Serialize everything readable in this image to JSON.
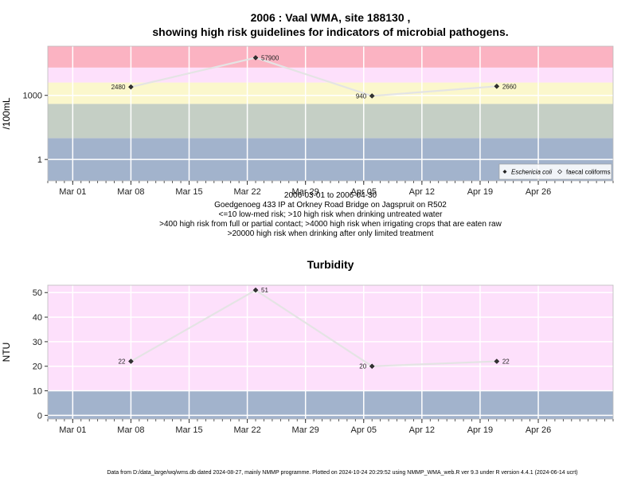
{
  "top": {
    "title_line1": "2006 : Vaal WMA, site 188130 ,",
    "title_line2": "showing high risk guidelines for indicators of microbial pathogens.",
    "caption_lines": [
      "2006-03-01 to 2006-04-30",
      "Goedgenoeg 433 IP at Orkney Road Bridge on Jagspruit on R502",
      "<=10 low-med risk; >10 high risk when drinking untreated water",
      ">400 high risk from full or partial contact; >4000 high risk when irrigating crops that are eaten raw",
      ">20000 high risk when drinking after only limited treatment"
    ]
  },
  "chart_data": [
    {
      "type": "line",
      "ylabel": "/100mL",
      "yscale": "log",
      "ylim": [
        0.1,
        200000
      ],
      "xlim": [
        "2006-02-26",
        "2006-05-05"
      ],
      "x_ticks": [
        "Mar 01",
        "Mar 08",
        "Mar 15",
        "Mar 22",
        "Mar 29",
        "Apr 05",
        "Apr 12",
        "Apr 19",
        "Apr 26"
      ],
      "x_tick_dates": [
        "2006-03-01",
        "2006-03-08",
        "2006-03-15",
        "2006-03-22",
        "2006-03-29",
        "2006-04-05",
        "2006-04-12",
        "2006-04-19",
        "2006-04-26"
      ],
      "y_ticks": [
        1,
        1000
      ],
      "y_tick_labels": [
        "1",
        "1000"
      ],
      "bands": [
        {
          "from": 0.1,
          "to": 10,
          "color": "#a2b3cc"
        },
        {
          "from": 10,
          "to": 400,
          "color": "#c5cfc5"
        },
        {
          "from": 400,
          "to": 4000,
          "color": "#fbf7cc"
        },
        {
          "from": 4000,
          "to": 20000,
          "color": "#fde0fb"
        },
        {
          "from": 20000,
          "to": 200000,
          "color": "#fbb3c2"
        }
      ],
      "series": [
        {
          "name": "Eschericia coli",
          "x": [
            "2006-03-08",
            "2006-03-23",
            "2006-04-06",
            "2006-04-21"
          ],
          "y": [
            2480,
            57900,
            940,
            2660
          ],
          "labels": [
            "2480",
            "57900",
            "940",
            "2660"
          ]
        }
      ],
      "legend": {
        "position": "bottom-right",
        "entries": [
          {
            "label": "Eschericia coli",
            "marker": "filled-diamond"
          },
          {
            "label": "faecal coliforms",
            "marker": "open-diamond"
          }
        ]
      },
      "grid": true
    },
    {
      "type": "line",
      "title": "Turbidity",
      "ylabel": "NTU",
      "ylim": [
        -1.5,
        53
      ],
      "xlim": [
        "2006-02-26",
        "2006-05-05"
      ],
      "x_ticks": [
        "Mar 01",
        "Mar 08",
        "Mar 15",
        "Mar 22",
        "Mar 29",
        "Apr 05",
        "Apr 12",
        "Apr 19",
        "Apr 26"
      ],
      "x_tick_dates": [
        "2006-03-01",
        "2006-03-08",
        "2006-03-15",
        "2006-03-22",
        "2006-03-29",
        "2006-04-05",
        "2006-04-12",
        "2006-04-19",
        "2006-04-26"
      ],
      "y_ticks": [
        0,
        10,
        20,
        30,
        40,
        50
      ],
      "y_tick_labels": [
        "0",
        "10",
        "20",
        "30",
        "40",
        "50"
      ],
      "bands": [
        {
          "from": -1.5,
          "to": 10,
          "color": "#a2b3cc"
        },
        {
          "from": 10,
          "to": 53,
          "color": "#fde0fb"
        }
      ],
      "series": [
        {
          "x": [
            "2006-03-08",
            "2006-03-23",
            "2006-04-06",
            "2006-04-21"
          ],
          "y": [
            22,
            51,
            20,
            22
          ],
          "labels": [
            "22",
            "51",
            "20",
            "22"
          ]
        }
      ],
      "grid": true
    }
  ],
  "footer": "Data from D:/data_large/wq/wms.db dated 2024-08-27, mainly NMMP programme. Plotted on 2024-10-24 20:29:52 using NMMP_WMA_web.R ver 9.3 under R version 4.4.1 (2024-06-14 ucrt)"
}
